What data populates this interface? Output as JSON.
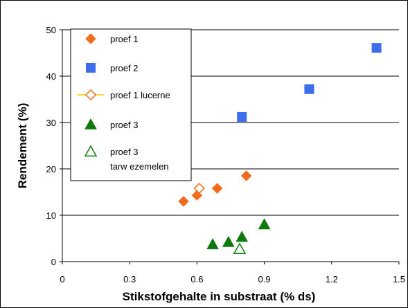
{
  "chart_data": {
    "type": "scatter",
    "title": "",
    "xlabel": "Stikstofgehalte in substraat (% ds)",
    "ylabel": "Rendement (%)",
    "xlim": [
      0,
      1.5
    ],
    "ylim": [
      0,
      50
    ],
    "x_ticks": [
      "0",
      "0.3",
      "0.6",
      "0.9",
      "1.2",
      "1.5"
    ],
    "y_ticks": [
      "0",
      "10",
      "20",
      "30",
      "40",
      "50"
    ],
    "grid": "horizontal",
    "legend_position": "top-left",
    "series": [
      {
        "name": "proef 1",
        "marker": "diamond",
        "filled": true,
        "color": "#F26B1D",
        "points": [
          [
            0.54,
            13.0
          ],
          [
            0.6,
            14.3
          ],
          [
            0.69,
            15.8
          ],
          [
            0.82,
            18.5
          ]
        ]
      },
      {
        "name": "proef 2",
        "marker": "square",
        "filled": true,
        "color": "#3D6EEB",
        "points": [
          [
            0.8,
            31.2
          ],
          [
            1.1,
            37.2
          ],
          [
            1.4,
            46.1
          ]
        ]
      },
      {
        "name": "proef 1 lucerne",
        "marker": "diamond",
        "filled": false,
        "color": "#F26B1D",
        "legend_line_color": "#FFCC00",
        "points": [
          [
            0.61,
            15.8
          ]
        ]
      },
      {
        "name": "proef 3",
        "marker": "triangle",
        "filled": true,
        "color": "#0E7A0E",
        "points": [
          [
            0.67,
            3.7
          ],
          [
            0.74,
            4.2
          ],
          [
            0.8,
            5.3
          ],
          [
            0.9,
            8.0
          ]
        ]
      },
      {
        "name": "proef 3 tarw ezemelen",
        "legend_lines": [
          "proef 3",
          "tarw ezemelen"
        ],
        "marker": "triangle",
        "filled": false,
        "color": "#0E7A0E",
        "points": [
          [
            0.79,
            2.7
          ]
        ]
      }
    ]
  }
}
